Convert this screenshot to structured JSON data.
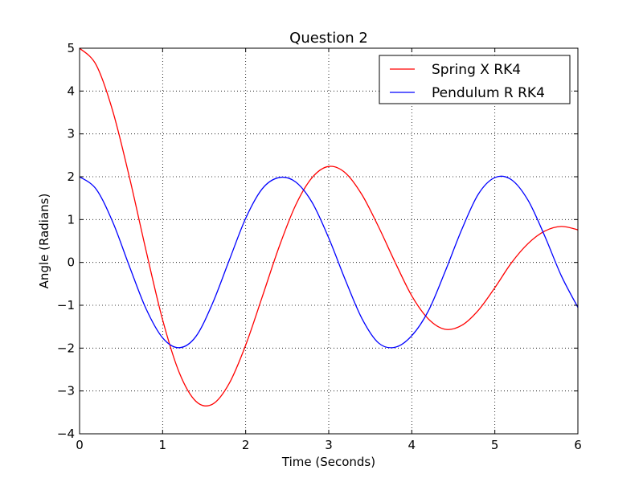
{
  "chart_data": {
    "type": "line",
    "title": "Question 2",
    "xlabel": "Time (Seconds)",
    "ylabel": "Angle (Radians)",
    "xlim": [
      0,
      6
    ],
    "ylim": [
      -4,
      5
    ],
    "xticks": [
      0,
      1,
      2,
      3,
      4,
      5,
      6
    ],
    "yticks": [
      -4,
      -3,
      -2,
      -1,
      0,
      1,
      2,
      3,
      4,
      5
    ],
    "xtick_labels": [
      "0",
      "1",
      "2",
      "3",
      "4",
      "5",
      "6"
    ],
    "ytick_labels": [
      "−4",
      "−3",
      "−2",
      "−1",
      "0",
      "1",
      "2",
      "3",
      "4",
      "5"
    ],
    "grid": true,
    "legend_position": "top-right",
    "series": [
      {
        "name": "Spring X RK4",
        "color": "#ff0000",
        "x": [
          0,
          0.2,
          0.4,
          0.6,
          0.8,
          1.0,
          1.2,
          1.4,
          1.6,
          1.8,
          2.0,
          2.2,
          2.4,
          2.6,
          2.8,
          3.0,
          3.2,
          3.4,
          3.6,
          3.8,
          4.0,
          4.2,
          4.4,
          4.6,
          4.8,
          5.0,
          5.2,
          5.4,
          5.6,
          5.8,
          6.0
        ],
        "y": [
          5.0,
          4.61,
          3.53,
          1.99,
          0.28,
          -1.34,
          -2.57,
          -3.24,
          -3.31,
          -2.83,
          -1.93,
          -0.8,
          0.35,
          1.33,
          1.98,
          2.24,
          2.09,
          1.58,
          0.83,
          -0.0,
          -0.78,
          -1.32,
          -1.56,
          -1.47,
          -1.12,
          -0.59,
          -0.01,
          0.44,
          0.73,
          0.84,
          0.76
        ]
      },
      {
        "name": "Pendulum R RK4",
        "color": "#0000ff",
        "x": [
          0,
          0.2,
          0.4,
          0.6,
          0.8,
          1.0,
          1.2,
          1.4,
          1.6,
          1.8,
          2.0,
          2.2,
          2.4,
          2.6,
          2.8,
          3.0,
          3.2,
          3.4,
          3.6,
          3.8,
          4.0,
          4.2,
          4.4,
          4.6,
          4.8,
          5.0,
          5.2,
          5.4,
          5.6,
          5.8,
          6.0
        ],
        "y": [
          2.0,
          1.71,
          0.94,
          -0.09,
          -1.08,
          -1.76,
          -1.99,
          -1.73,
          -0.96,
          0.04,
          1.03,
          1.72,
          1.98,
          1.88,
          1.4,
          0.57,
          -0.41,
          -1.31,
          -1.88,
          -1.98,
          -1.71,
          -1.13,
          -0.22,
          0.76,
          1.59,
          1.98,
          1.93,
          1.45,
          0.62,
          -0.31,
          -1.05
        ]
      }
    ]
  }
}
